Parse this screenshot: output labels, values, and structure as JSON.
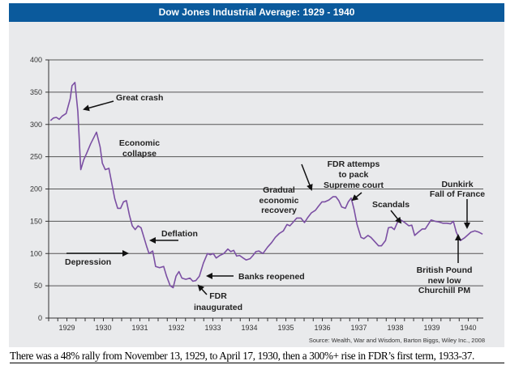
{
  "chart_data": {
    "type": "line",
    "title": "Dow Jones Industrial Average: 1929 - 1940",
    "xlabel": "",
    "ylabel": "",
    "ylim": [
      0,
      400
    ],
    "xlim": [
      1929,
      1940.91
    ],
    "yticks": [
      0,
      50,
      100,
      150,
      200,
      250,
      300,
      350,
      400
    ],
    "xtick_labels": [
      "1929",
      "1930",
      "1931",
      "1932",
      "1933",
      "1934",
      "1935",
      "1936",
      "1937",
      "1938",
      "1939",
      "1940"
    ],
    "grid": "horizontal",
    "line_color": "#7b4fa3",
    "points": [
      [
        1929.05,
        306
      ],
      [
        1929.13,
        310
      ],
      [
        1929.21,
        311
      ],
      [
        1929.29,
        308
      ],
      [
        1929.37,
        313
      ],
      [
        1929.48,
        317
      ],
      [
        1929.59,
        340
      ],
      [
        1929.64,
        360
      ],
      [
        1929.72,
        365
      ],
      [
        1929.8,
        320
      ],
      [
        1929.88,
        230
      ],
      [
        1929.96,
        245
      ],
      [
        1930.04,
        255
      ],
      [
        1930.15,
        270
      ],
      [
        1930.31,
        288
      ],
      [
        1930.41,
        265
      ],
      [
        1930.47,
        240
      ],
      [
        1930.55,
        230
      ],
      [
        1930.65,
        232
      ],
      [
        1930.76,
        200
      ],
      [
        1930.81,
        185
      ],
      [
        1930.89,
        170
      ],
      [
        1930.97,
        170
      ],
      [
        1931.05,
        180
      ],
      [
        1931.13,
        182
      ],
      [
        1931.21,
        160
      ],
      [
        1931.29,
        143
      ],
      [
        1931.37,
        137
      ],
      [
        1931.45,
        143
      ],
      [
        1931.53,
        140
      ],
      [
        1931.61,
        125
      ],
      [
        1931.69,
        110
      ],
      [
        1931.75,
        100
      ],
      [
        1931.85,
        104
      ],
      [
        1931.93,
        80
      ],
      [
        1932.04,
        78
      ],
      [
        1932.15,
        80
      ],
      [
        1932.23,
        65
      ],
      [
        1932.33,
        50
      ],
      [
        1932.41,
        47
      ],
      [
        1932.49,
        65
      ],
      [
        1932.57,
        72
      ],
      [
        1932.65,
        62
      ],
      [
        1932.76,
        60
      ],
      [
        1932.87,
        62
      ],
      [
        1932.95,
        57
      ],
      [
        1933.03,
        58
      ],
      [
        1933.13,
        65
      ],
      [
        1933.24,
        85
      ],
      [
        1933.35,
        100
      ],
      [
        1933.43,
        98
      ],
      [
        1933.51,
        100
      ],
      [
        1933.59,
        93
      ],
      [
        1933.69,
        97
      ],
      [
        1933.8,
        100
      ],
      [
        1933.91,
        107
      ],
      [
        1933.99,
        103
      ],
      [
        1934.07,
        105
      ],
      [
        1934.15,
        96
      ],
      [
        1934.23,
        97
      ],
      [
        1934.33,
        93
      ],
      [
        1934.41,
        90
      ],
      [
        1934.52,
        92
      ],
      [
        1934.6,
        97
      ],
      [
        1934.68,
        103
      ],
      [
        1934.76,
        104
      ],
      [
        1934.87,
        100
      ],
      [
        1935.0,
        110
      ],
      [
        1935.11,
        117
      ],
      [
        1935.21,
        125
      ],
      [
        1935.32,
        131
      ],
      [
        1935.43,
        135
      ],
      [
        1935.53,
        145
      ],
      [
        1935.61,
        143
      ],
      [
        1935.69,
        148
      ],
      [
        1935.8,
        155
      ],
      [
        1935.91,
        155
      ],
      [
        1936.01,
        148
      ],
      [
        1936.09,
        155
      ],
      [
        1936.2,
        163
      ],
      [
        1936.31,
        167
      ],
      [
        1936.39,
        173
      ],
      [
        1936.49,
        180
      ],
      [
        1936.57,
        180
      ],
      [
        1936.68,
        183
      ],
      [
        1936.79,
        188
      ],
      [
        1936.87,
        188
      ],
      [
        1936.95,
        182
      ],
      [
        1937.03,
        172
      ],
      [
        1937.13,
        170
      ],
      [
        1937.21,
        180
      ],
      [
        1937.29,
        186
      ],
      [
        1937.37,
        168
      ],
      [
        1937.45,
        145
      ],
      [
        1937.56,
        125
      ],
      [
        1937.64,
        123
      ],
      [
        1937.75,
        128
      ],
      [
        1937.83,
        125
      ],
      [
        1937.96,
        117
      ],
      [
        1938.04,
        112
      ],
      [
        1938.12,
        112
      ],
      [
        1938.23,
        120
      ],
      [
        1938.31,
        140
      ],
      [
        1938.39,
        141
      ],
      [
        1938.47,
        137
      ],
      [
        1938.57,
        150
      ],
      [
        1938.65,
        152
      ],
      [
        1938.76,
        148
      ],
      [
        1938.87,
        143
      ],
      [
        1938.95,
        144
      ],
      [
        1939.03,
        128
      ],
      [
        1939.13,
        133
      ],
      [
        1939.24,
        138
      ],
      [
        1939.32,
        138
      ],
      [
        1939.4,
        145
      ],
      [
        1939.48,
        152
      ],
      [
        1939.59,
        150
      ],
      [
        1939.69,
        149
      ],
      [
        1939.8,
        147
      ],
      [
        1939.91,
        147
      ],
      [
        1940.01,
        146
      ],
      [
        1940.09,
        150
      ],
      [
        1940.17,
        133
      ],
      [
        1940.28,
        120
      ],
      [
        1940.39,
        124
      ],
      [
        1940.49,
        129
      ],
      [
        1940.57,
        133
      ],
      [
        1940.68,
        135
      ],
      [
        1940.79,
        133
      ],
      [
        1940.89,
        130
      ]
    ],
    "annotations": {
      "great_crash": "Great crash",
      "economic_collapse": [
        "Economic",
        "collapse"
      ],
      "deflation": "Deflation",
      "depression": "Depression",
      "banks_reopened": "Banks reopened",
      "fdr_inaugurated": [
        "FDR",
        "inaugurated"
      ],
      "gradual_recovery": [
        "Gradual",
        "economic",
        "recovery"
      ],
      "supreme_court": [
        "FDR attemps",
        "to pack",
        "Supreme court"
      ],
      "scandals": "Scandals",
      "dunkirk": [
        "Dunkirk",
        "Fall of France"
      ],
      "british_pound": [
        "British Pound",
        "new low",
        "Churchill PM"
      ]
    },
    "source": "Source: Wealth, War and Wisdom, Barton Biggs, Wiley Inc., 2008"
  },
  "caption": "There was a 48% rally from November 13, 1929, to April 17, 1930, then a 300%+ rise in FDR’s first term, 1933-37."
}
